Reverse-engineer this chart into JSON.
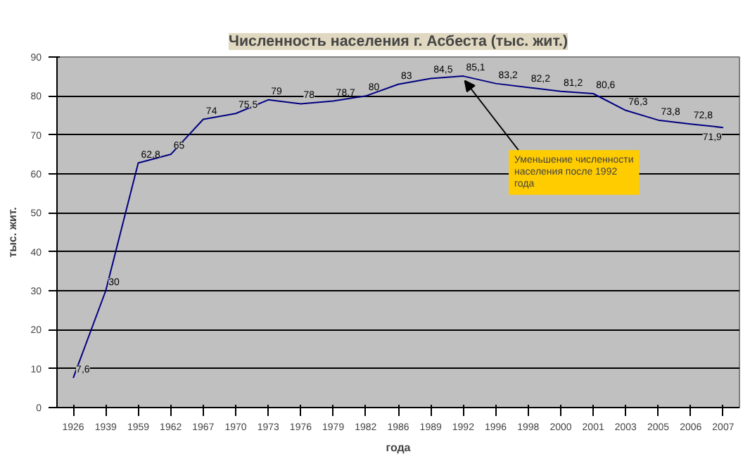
{
  "chart_data": {
    "type": "line",
    "title": "Численность населения г. Асбеста (тыс. жит.)",
    "xlabel": "года",
    "ylabel": "тыс. жит.",
    "categories": [
      "1926",
      "1939",
      "1959",
      "1962",
      "1967",
      "1970",
      "1973",
      "1976",
      "1979",
      "1982",
      "1986",
      "1989",
      "1992",
      "1996",
      "1998",
      "2000",
      "2001",
      "2003",
      "2005",
      "2006",
      "2007"
    ],
    "series": [
      {
        "color": "#000080",
        "values": [
          7.6,
          30,
          62.8,
          65,
          74,
          75.5,
          79,
          78,
          78.7,
          80,
          83,
          84.5,
          85.1,
          83.2,
          82.2,
          81.2,
          80.6,
          76.3,
          73.8,
          72.8,
          71.9
        ],
        "value_labels": [
          "7,6",
          "30",
          "62,8",
          "65",
          "74",
          "75,5",
          "79",
          "78",
          "78,7",
          "80",
          "83",
          "84,5",
          "85,1",
          "83,2",
          "82,2",
          "81,2",
          "80,6",
          "76,3",
          "73,8",
          "72,8",
          "71,9"
        ]
      }
    ],
    "ylim": [
      0,
      90
    ],
    "yticks": [
      0,
      10,
      20,
      30,
      40,
      50,
      60,
      70,
      80,
      90
    ],
    "grid": "y",
    "marker": "none",
    "line_style": "solid",
    "annotations": [
      {
        "text": "Уменьшение численности населения после 1992 года",
        "x": "1992",
        "y": 85.1
      }
    ]
  }
}
